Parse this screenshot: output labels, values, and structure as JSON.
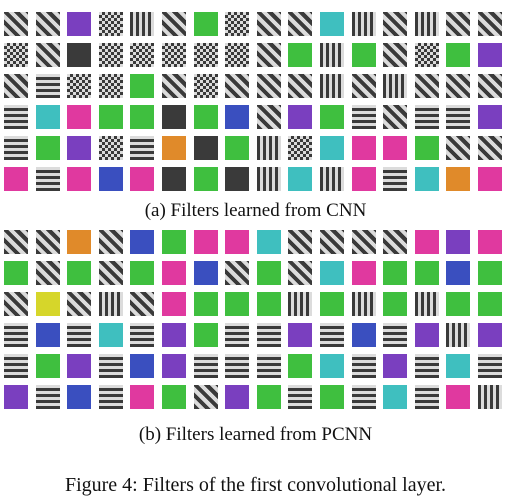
{
  "figure": {
    "panel_a": {
      "caption": "(a) Filters learned from CNN"
    },
    "panel_b": {
      "caption": "(b) Filters learned from PCNN"
    },
    "caption": "Figure 4: Filters of the first convolutional layer."
  },
  "palette": {
    "gray": "#8c8c8c",
    "dark": "#3a3a3a",
    "light": "#dcdcdc",
    "green": "#3fbf3f",
    "magenta": "#e0399f",
    "purple": "#7a3fbf",
    "cyan": "#3fbfbf",
    "blue": "#3a4fbf",
    "orange": "#e08a2a",
    "yellow": "#d6d62a"
  },
  "panels": [
    {
      "id": "cnn",
      "tiles": [
        [
          "diag",
          "diag",
          "purple",
          "checker",
          "stripes-v",
          "diag",
          "green",
          "checker",
          "diag",
          "diag",
          "cyan",
          "stripes-v",
          "diag",
          "stripes-v",
          "diag",
          "diag"
        ],
        [
          "checker",
          "diag",
          "dark",
          "checker",
          "checker",
          "checker",
          "checker",
          "checker",
          "diag",
          "green",
          "stripes-v",
          "green",
          "diag",
          "checker",
          "green",
          "purple"
        ],
        [
          "diag",
          "stripes-h",
          "checker",
          "checker",
          "green",
          "diag",
          "checker",
          "diag",
          "diag",
          "diag",
          "stripes-v",
          "diag",
          "stripes-v",
          "diag",
          "diag",
          "diag"
        ],
        [
          "stripes-h",
          "cyan",
          "magenta",
          "green",
          "green",
          "dark",
          "green",
          "blue",
          "diag",
          "purple",
          "green",
          "stripes-h",
          "diag",
          "stripes-h",
          "stripes-h",
          "purple"
        ],
        [
          "stripes-h",
          "green",
          "purple",
          "checker",
          "stripes-h",
          "orange",
          "dark",
          "green",
          "stripes-v",
          "checker",
          "cyan",
          "magenta",
          "magenta",
          "green",
          "diag",
          "diag"
        ],
        [
          "magenta",
          "stripes-h",
          "magenta",
          "blue",
          "magenta",
          "dark",
          "green",
          "dark",
          "stripes-v",
          "cyan",
          "stripes-v",
          "magenta",
          "stripes-h",
          "cyan",
          "orange",
          "magenta"
        ]
      ]
    },
    {
      "id": "pcnn",
      "tiles": [
        [
          "diag",
          "diag",
          "orange",
          "diag",
          "blue",
          "green",
          "magenta",
          "magenta",
          "cyan",
          "diag",
          "diag",
          "diag",
          "diag",
          "magenta",
          "purple",
          "magenta"
        ],
        [
          "green",
          "diag",
          "green",
          "diag",
          "green",
          "magenta",
          "blue",
          "diag",
          "green",
          "diag",
          "cyan",
          "magenta",
          "green",
          "green",
          "blue",
          "green"
        ],
        [
          "diag",
          "yellow",
          "diag",
          "stripes-v",
          "diag",
          "magenta",
          "green",
          "green",
          "green",
          "stripes-v",
          "green",
          "stripes-v",
          "green",
          "stripes-v",
          "green",
          "green"
        ],
        [
          "stripes-h",
          "blue",
          "stripes-h",
          "cyan",
          "stripes-h",
          "purple",
          "green",
          "stripes-h",
          "stripes-h",
          "purple",
          "stripes-h",
          "blue",
          "stripes-h",
          "purple",
          "stripes-v",
          "purple"
        ],
        [
          "stripes-h",
          "green",
          "purple",
          "stripes-h",
          "blue",
          "purple",
          "stripes-h",
          "stripes-h",
          "stripes-h",
          "green",
          "cyan",
          "stripes-h",
          "purple",
          "stripes-h",
          "cyan",
          "stripes-h"
        ],
        [
          "purple",
          "stripes-h",
          "blue",
          "stripes-h",
          "magenta",
          "green",
          "diag",
          "purple",
          "green",
          "stripes-h",
          "green",
          "stripes-h",
          "cyan",
          "stripes-h",
          "magenta",
          "stripes-v"
        ]
      ]
    }
  ]
}
